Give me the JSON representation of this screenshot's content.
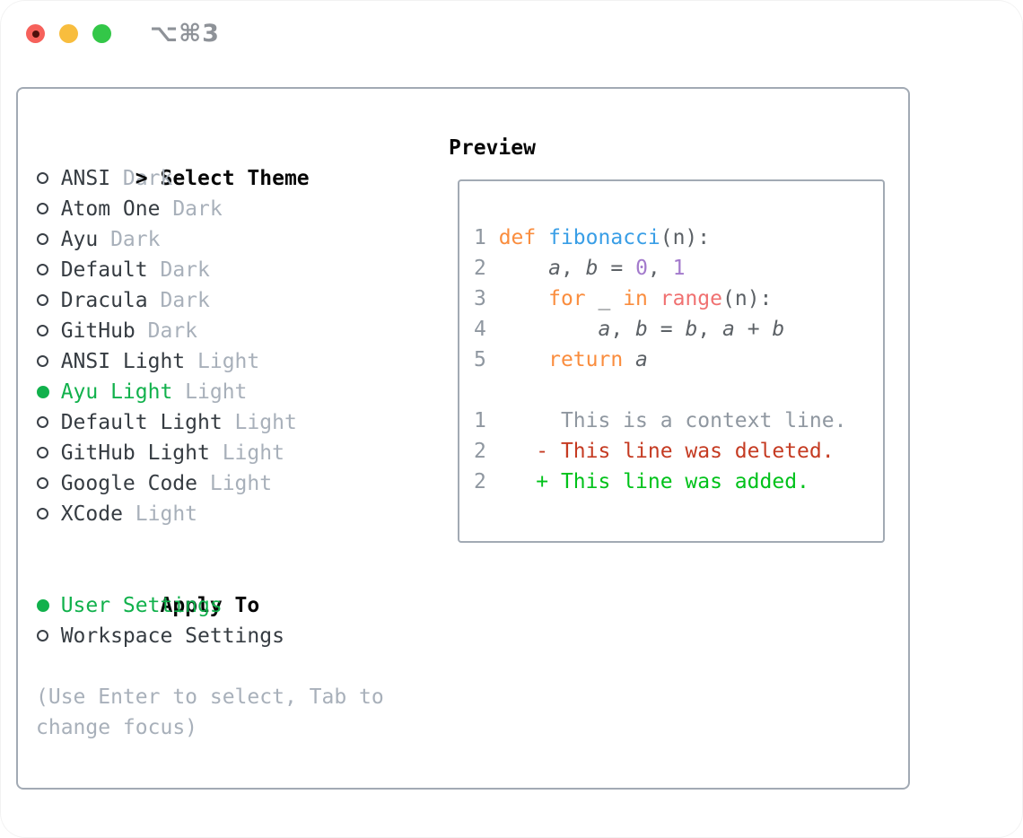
{
  "window": {
    "title": "⌥⌘3",
    "controls": [
      "close",
      "minimize",
      "zoom"
    ]
  },
  "theme_panel": {
    "header": {
      "prefix": ">",
      "label": "Select Theme"
    },
    "themes": [
      {
        "name": "ANSI",
        "variant": "Dark",
        "selected": false
      },
      {
        "name": "Atom One",
        "variant": "Dark",
        "selected": false
      },
      {
        "name": "Ayu",
        "variant": "Dark",
        "selected": false
      },
      {
        "name": "Default",
        "variant": "Dark",
        "selected": false
      },
      {
        "name": "Dracula",
        "variant": "Dark",
        "selected": false
      },
      {
        "name": "GitHub",
        "variant": "Dark",
        "selected": false
      },
      {
        "name": "ANSI Light",
        "variant": "Light",
        "selected": false
      },
      {
        "name": "Ayu Light",
        "variant": "Light",
        "selected": true
      },
      {
        "name": "Default Light",
        "variant": "Light",
        "selected": false
      },
      {
        "name": "GitHub Light",
        "variant": "Light",
        "selected": false
      },
      {
        "name": "Google Code",
        "variant": "Light",
        "selected": false
      },
      {
        "name": "XCode",
        "variant": "Light",
        "selected": false
      }
    ],
    "apply_to": {
      "header": "Apply To",
      "options": [
        {
          "label": "User Settings",
          "selected": true
        },
        {
          "label": "Workspace Settings",
          "selected": false
        }
      ]
    },
    "hint_lines": [
      "(Use Enter to select, Tab to",
      "change focus)"
    ]
  },
  "preview": {
    "title": "Preview",
    "lines": [
      {
        "kind": "code",
        "tokens": [
          [
            "1 ",
            "num"
          ],
          [
            "def",
            "kw"
          ],
          [
            " ",
            "plain"
          ],
          [
            "fibonacci",
            "fn"
          ],
          [
            "(n):",
            "plain"
          ]
        ]
      },
      {
        "kind": "code",
        "tokens": [
          [
            "2 ",
            "num"
          ],
          [
            "    ",
            "plain"
          ],
          [
            "a",
            "var"
          ],
          [
            ", ",
            "plain"
          ],
          [
            "b",
            "var"
          ],
          [
            " = ",
            "plain"
          ],
          [
            "0",
            "lit"
          ],
          [
            ", ",
            "plain"
          ],
          [
            "1",
            "lit"
          ]
        ]
      },
      {
        "kind": "code",
        "tokens": [
          [
            "3 ",
            "num"
          ],
          [
            "    ",
            "plain"
          ],
          [
            "for",
            "kw"
          ],
          [
            " _ ",
            "plain"
          ],
          [
            "in",
            "kw"
          ],
          [
            " ",
            "plain"
          ],
          [
            "range",
            "call"
          ],
          [
            "(n):",
            "plain"
          ]
        ]
      },
      {
        "kind": "code",
        "tokens": [
          [
            "4 ",
            "num"
          ],
          [
            "        ",
            "plain"
          ],
          [
            "a",
            "var"
          ],
          [
            ", ",
            "plain"
          ],
          [
            "b",
            "var"
          ],
          [
            " = ",
            "plain"
          ],
          [
            "b",
            "var"
          ],
          [
            ", ",
            "plain"
          ],
          [
            "a",
            "var"
          ],
          [
            " + ",
            "plain"
          ],
          [
            "b",
            "var"
          ]
        ]
      },
      {
        "kind": "code",
        "tokens": [
          [
            "5 ",
            "num"
          ],
          [
            "    ",
            "plain"
          ],
          [
            "return",
            "kw"
          ],
          [
            " ",
            "plain"
          ],
          [
            "a",
            "var"
          ]
        ]
      },
      {
        "kind": "blank",
        "tokens": []
      },
      {
        "kind": "context",
        "tokens": [
          [
            "1",
            "num"
          ],
          [
            "      This is a context line.",
            "ctx"
          ]
        ]
      },
      {
        "kind": "deleted",
        "tokens": [
          [
            "2",
            "num"
          ],
          [
            "    ",
            "plain"
          ],
          [
            "- This line was deleted.",
            "del"
          ]
        ]
      },
      {
        "kind": "added",
        "tokens": [
          [
            "2",
            "num"
          ],
          [
            "    ",
            "plain"
          ],
          [
            "+ This line was added.",
            "add"
          ]
        ]
      }
    ]
  },
  "colors": {
    "selected-green": "#11b14c",
    "added-green": "#00c21a",
    "deleted-red": "#c53b22",
    "keyword-orange": "#fa8d3e",
    "function-blue": "#399ee6",
    "literal-purple": "#a37acc",
    "call-coral": "#f07171",
    "muted-gray": "#a8b0ba",
    "code-gray": "#8f97a0",
    "text-dark": "#363c42",
    "code-text": "#5c6166",
    "border-gray": "#a2aab4",
    "traffic-red": "#f6615b",
    "traffic-yellow": "#f8bd3e",
    "traffic-green": "#33c748",
    "title-gray": "#8e9298"
  }
}
